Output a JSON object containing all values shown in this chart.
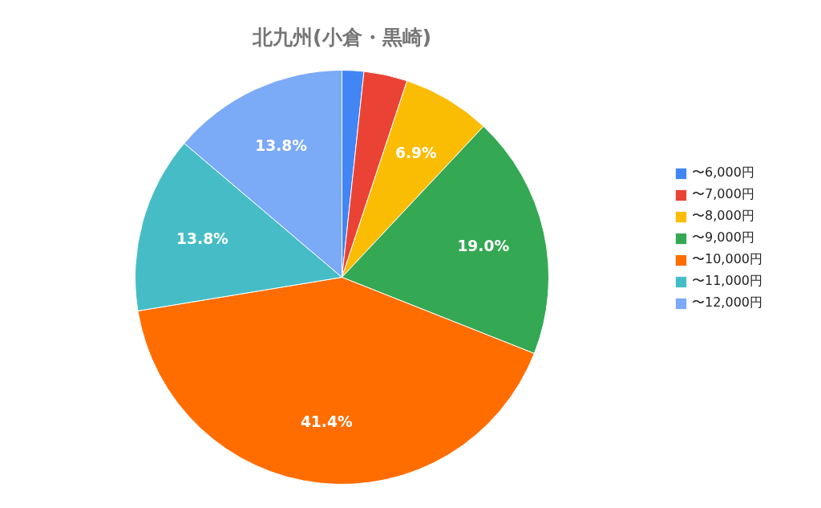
{
  "chart_data": {
    "type": "pie",
    "title": "北九州(小倉・黒崎)",
    "categories": [
      "〜6,000円",
      "〜7,000円",
      "〜8,000円",
      "〜9,000円",
      "〜10,000円",
      "〜11,000円",
      "〜12,000円"
    ],
    "values": [
      1.7,
      3.4,
      6.9,
      19.0,
      41.4,
      13.8,
      13.8
    ],
    "colors": [
      "#4285f4",
      "#ea4335",
      "#fbbc04",
      "#34a853",
      "#ff6d01",
      "#46bdc6",
      "#7baaf7"
    ],
    "value_labels": [
      null,
      null,
      "6.9%",
      "19.0%",
      "41.4%",
      "13.8%",
      "13.8%"
    ],
    "legend": "right"
  }
}
